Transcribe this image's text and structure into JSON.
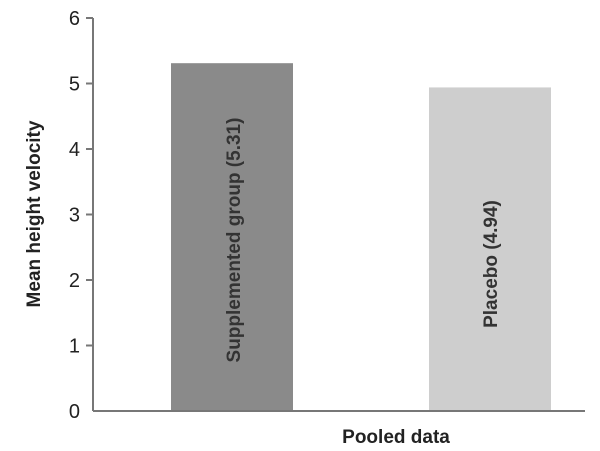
{
  "chart_data": {
    "type": "bar",
    "title": "",
    "xlabel": "Pooled data",
    "ylabel": "Mean height velocity",
    "ylim": [
      0,
      6
    ],
    "yticks": [
      "0",
      "1",
      "2",
      "3",
      "4",
      "5",
      "6"
    ],
    "grid": false,
    "legend": "none",
    "categories": [
      "Supplemented group (5.31)",
      "Placebo (4.94)"
    ],
    "values": [
      5.31,
      4.94
    ],
    "colors": [
      "#8a8a8a",
      "#cecece"
    ]
  }
}
